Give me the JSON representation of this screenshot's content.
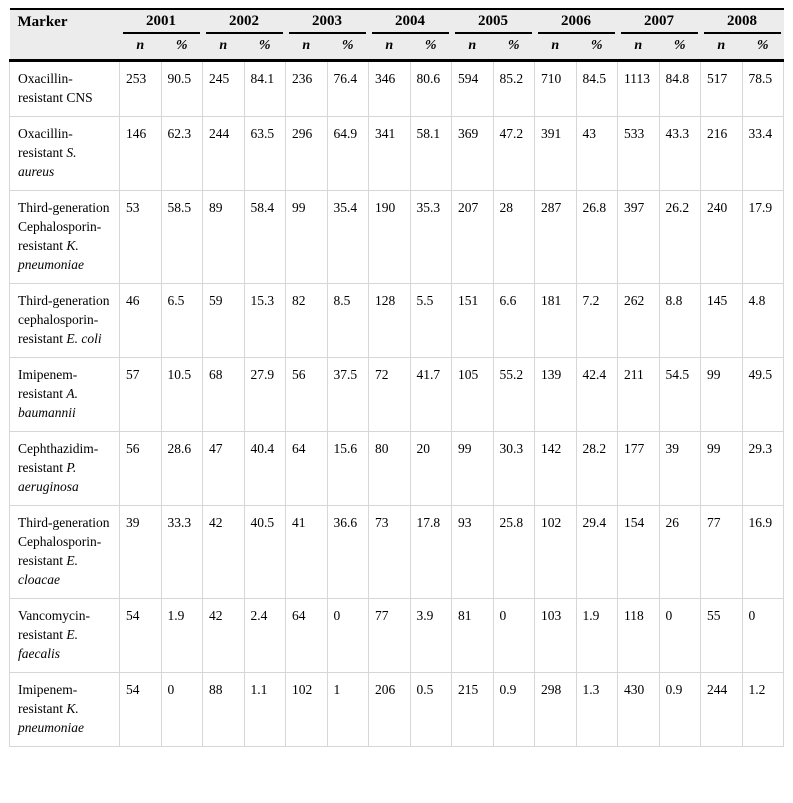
{
  "table": {
    "title_column": "Marker",
    "years": [
      "2001",
      "2002",
      "2003",
      "2004",
      "2005",
      "2006",
      "2007",
      "2008"
    ],
    "subcols": {
      "n": "n",
      "pct": "%"
    },
    "style": {
      "header_bg": "#ececec",
      "grid_color": "#d6d6d6",
      "heavy_rule_color": "#000000"
    },
    "rows": [
      {
        "marker_plain": "Oxacillin-resistant CNS",
        "marker_italic": "",
        "values": [
          "253",
          "90.5",
          "245",
          "84.1",
          "236",
          "76.4",
          "346",
          "80.6",
          "594",
          "85.2",
          "710",
          "84.5",
          "1113",
          "84.8",
          "517",
          "78.5"
        ]
      },
      {
        "marker_plain": "Oxacillin-resistant ",
        "marker_italic": "S. aureus",
        "values": [
          "146",
          "62.3",
          "244",
          "63.5",
          "296",
          "64.9",
          "341",
          "58.1",
          "369",
          "47.2",
          "391",
          "43",
          "533",
          "43.3",
          "216",
          "33.4"
        ]
      },
      {
        "marker_plain": "Third-generation Cephalosporin-resistant ",
        "marker_italic": "K. pneumoniae",
        "values": [
          "53",
          "58.5",
          "89",
          "58.4",
          "99",
          "35.4",
          "190",
          "35.3",
          "207",
          "28",
          "287",
          "26.8",
          "397",
          "26.2",
          "240",
          "17.9"
        ]
      },
      {
        "marker_plain": "Third-generation cephalosporin-resistant ",
        "marker_italic": "E. coli",
        "values": [
          "46",
          "6.5",
          "59",
          "15.3",
          "82",
          "8.5",
          "128",
          "5.5",
          "151",
          "6.6",
          "181",
          "7.2",
          "262",
          "8.8",
          "145",
          "4.8"
        ]
      },
      {
        "marker_plain": "Imipenem-resistant ",
        "marker_italic": "A. baumannii",
        "values": [
          "57",
          "10.5",
          "68",
          "27.9",
          "56",
          "37.5",
          "72",
          "41.7",
          "105",
          "55.2",
          "139",
          "42.4",
          "211",
          "54.5",
          "99",
          "49.5"
        ]
      },
      {
        "marker_plain": "Cephthazidim-resistant ",
        "marker_italic": "P. aeruginosa",
        "values": [
          "56",
          "28.6",
          "47",
          "40.4",
          "64",
          "15.6",
          "80",
          "20",
          "99",
          "30.3",
          "142",
          "28.2",
          "177",
          "39",
          "99",
          "29.3"
        ]
      },
      {
        "marker_plain": "Third-generation Cephalosporin-resistant ",
        "marker_italic": "E. cloacae",
        "values": [
          "39",
          "33.3",
          "42",
          "40.5",
          "41",
          "36.6",
          "73",
          "17.8",
          "93",
          "25.8",
          "102",
          "29.4",
          "154",
          "26",
          "77",
          "16.9"
        ]
      },
      {
        "marker_plain": "Vancomycin-resistant ",
        "marker_italic": "E. faecalis",
        "values": [
          "54",
          "1.9",
          "42",
          "2.4",
          "64",
          "0",
          "77",
          "3.9",
          "81",
          "0",
          "103",
          "1.9",
          "118",
          "0",
          "55",
          "0"
        ]
      },
      {
        "marker_plain": "Imipenem-resistant ",
        "marker_italic": "K. pneumoniae",
        "values": [
          "54",
          "0",
          "88",
          "1.1",
          "102",
          "1",
          "206",
          "0.5",
          "215",
          "0.9",
          "298",
          "1.3",
          "430",
          "0.9",
          "244",
          "1.2"
        ]
      }
    ]
  }
}
